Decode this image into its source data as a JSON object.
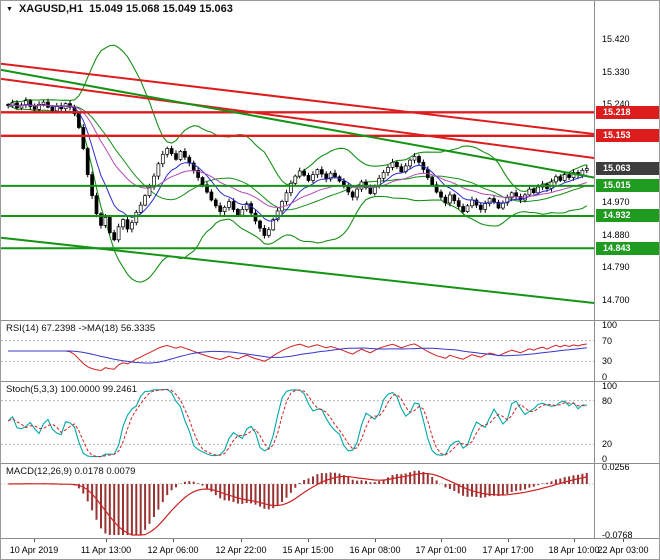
{
  "quote": {
    "dropdown_icon": "▼",
    "symbol_period": "XAGUSD,H1",
    "ohlc": "15.049 15.068 15.049 15.063"
  },
  "time_axis": {
    "labels": [
      "10 Apr 2019",
      "11 Apr 13:00",
      "12 Apr 06:00",
      "12 Apr 22:00",
      "15 Apr 15:00",
      "16 Apr 08:00",
      "17 Apr 01:00",
      "17 Apr 17:00",
      "18 Apr 10:00",
      "22 Apr 03:00"
    ],
    "fractions": [
      0.05,
      0.159,
      0.261,
      0.364,
      0.465,
      0.567,
      0.667,
      0.768,
      0.868,
      0.942
    ]
  },
  "chart_data": {
    "type": "candlestick",
    "symbol": "XAGUSD",
    "timeframe": "H1",
    "title": "XAGUSD,H1 15.049 15.068 15.049 15.063",
    "current_bar": {
      "open": 15.049,
      "high": 15.068,
      "low": 15.049,
      "close": 15.063
    },
    "price_axis": {
      "max": 15.525,
      "min": 14.645,
      "ticks": [
        15.42,
        15.33,
        15.24,
        14.97,
        14.88,
        14.79,
        14.7
      ]
    },
    "price_markers": [
      {
        "value": 15.218,
        "label": "15.218",
        "color": "#dd1d1d"
      },
      {
        "value": 15.153,
        "label": "15.153",
        "color": "#dd1d1d"
      },
      {
        "value": 15.063,
        "label": "15.063",
        "color": "#3d3d3d"
      },
      {
        "value": 15.015,
        "label": "15.015",
        "color": "#1f9b1f"
      },
      {
        "value": 14.932,
        "label": "14.932",
        "color": "#1f9b1f"
      },
      {
        "value": 14.843,
        "label": "14.843",
        "color": "#1f9b1f"
      }
    ],
    "levels": {
      "red": [
        15.218,
        15.153
      ],
      "green": [
        15.015,
        14.932,
        14.843
      ]
    },
    "trendlines": [
      {
        "color": "red",
        "from": [
          0,
          15.352
        ],
        "to": [
          1,
          15.158
        ]
      },
      {
        "color": "red",
        "from": [
          0,
          15.31
        ],
        "to": [
          1,
          15.092
        ]
      },
      {
        "color": "green",
        "from": [
          0,
          15.335
        ],
        "to": [
          1,
          15.038
        ]
      },
      {
        "color": "green",
        "from": [
          0,
          14.872
        ],
        "to": [
          1,
          14.692
        ]
      }
    ],
    "colors": {
      "background": "#ffffff",
      "red": "#dd1d1d",
      "green": "#149414",
      "bands": "#159015",
      "candle_outline": "#000000",
      "ma_fast": "#2a2ace",
      "ma_slow": "#b44ab4",
      "rsi": "#d02020",
      "rsi_ma": "#3636cc",
      "stoch_main": "#00a8a8",
      "stoch_signal": "#d02020",
      "macd_histogram": "#993333",
      "macd_signal": "#cc2222",
      "grid_level": "#b8b8b8"
    },
    "candles_close": [
      15.236,
      15.244,
      15.23,
      15.238,
      15.25,
      15.234,
      15.226,
      15.24,
      15.246,
      15.232,
      15.222,
      15.236,
      15.228,
      15.242,
      15.232,
      15.214,
      15.176,
      15.118,
      15.046,
      14.988,
      14.938,
      14.906,
      14.928,
      14.886,
      14.866,
      14.902,
      14.922,
      14.896,
      14.914,
      14.942,
      14.962,
      14.988,
      15.012,
      15.042,
      15.076,
      15.102,
      15.118,
      15.104,
      15.088,
      15.11,
      15.094,
      15.078,
      15.058,
      15.038,
      15.018,
      14.998,
      14.976,
      14.96,
      14.944,
      14.956,
      14.972,
      14.95,
      14.934,
      14.95,
      14.966,
      14.94,
      14.918,
      14.898,
      14.878,
      14.894,
      14.922,
      14.946,
      14.972,
      14.996,
      15.022,
      15.042,
      15.056,
      15.044,
      15.03,
      15.046,
      15.06,
      15.048,
      15.034,
      15.05,
      15.04,
      15.028,
      15.014,
      14.998,
      14.984,
      15.006,
      15.026,
      15.01,
      14.994,
      15.016,
      15.036,
      15.052,
      15.066,
      15.08,
      15.068,
      15.054,
      15.07,
      15.086,
      15.096,
      15.08,
      15.06,
      15.038,
      15.018,
      14.998,
      14.984,
      14.968,
      14.99,
      14.974,
      14.958,
      14.944,
      14.96,
      14.976,
      14.962,
      14.95,
      14.966,
      14.98,
      14.97,
      14.954,
      14.968,
      14.982,
      14.996,
      14.986,
      14.976,
      14.99,
      15.006,
      14.996,
      15.012,
      15.02,
      15.008,
      15.026,
      15.04,
      15.03,
      15.046,
      15.038,
      15.052,
      15.046,
      15.058,
      15.063
    ],
    "indicators": {
      "rsi": {
        "label": "RSI(14) 67.2398 ->MA(18) 56.3335",
        "period": 14,
        "ma_period": 18,
        "value": 67.2398,
        "ma_value": 56.3335,
        "levels": [
          70,
          30
        ],
        "axis_ticks": [
          100,
          70,
          30,
          0
        ]
      },
      "stoch": {
        "label": "Stoch(5,3,3) 100.0000 99.2461",
        "k": 5,
        "d": 3,
        "slowing": 3,
        "value": 100.0,
        "signal_value": 99.2461,
        "levels": [
          80,
          20
        ],
        "axis_ticks": [
          100,
          80,
          20,
          0
        ]
      },
      "macd": {
        "label": "MACD(12,26,9) 0.0178 0.0079",
        "fast": 12,
        "slow": 26,
        "signal": 9,
        "value": 0.0178,
        "signal_value": 0.0079,
        "axis_ticks": [
          0.0256,
          -0.0768
        ]
      }
    }
  }
}
